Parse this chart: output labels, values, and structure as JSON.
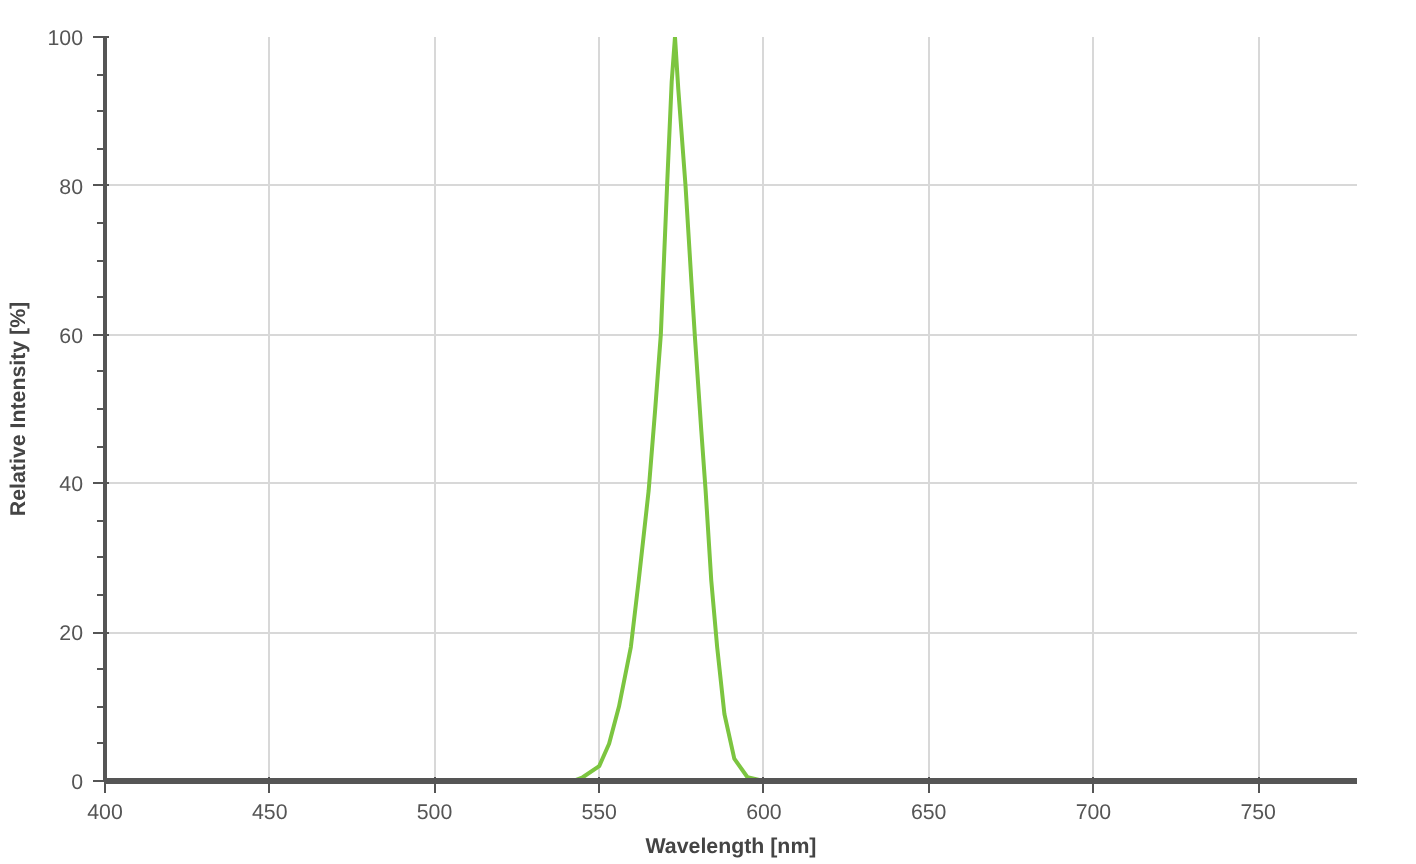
{
  "chart_data": {
    "type": "line",
    "xlabel": "Wavelength [nm]",
    "ylabel": "Relative Intensity [%]",
    "x": [
      542,
      545,
      550,
      553,
      556,
      559.6,
      562,
      565,
      567,
      568.7,
      570.6,
      572,
      573,
      574,
      576.2,
      578,
      579,
      581,
      582.3,
      584,
      585.8,
      588,
      591,
      595,
      600
    ],
    "series": [
      {
        "color": "#7cc540",
        "values": [
          0,
          0.5,
          2,
          5,
          10,
          18,
          27,
          39,
          50,
          60,
          80,
          94,
          100,
          93,
          80,
          67,
          60,
          47,
          39,
          27,
          18,
          9,
          3,
          0.5,
          0
        ]
      }
    ],
    "xlim": [
      400,
      780
    ],
    "xticks": [
      400,
      450,
      500,
      550,
      600,
      650,
      700,
      750
    ],
    "ylim": [
      0,
      100
    ],
    "yticks": [
      0,
      20,
      40,
      60,
      80,
      100
    ],
    "grid": true,
    "line_style": "solid",
    "marker": "none"
  }
}
